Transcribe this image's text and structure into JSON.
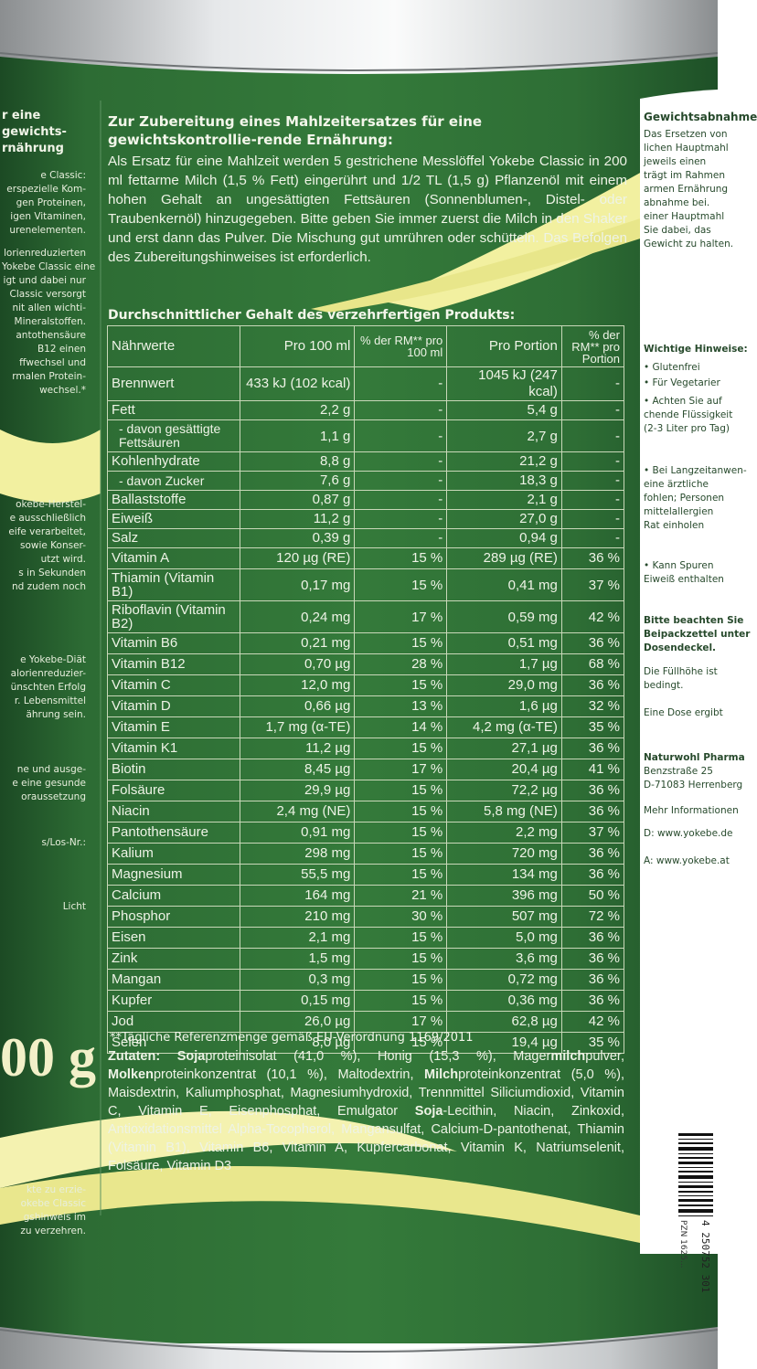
{
  "colors": {
    "can_green": "#2c6b33",
    "can_green_dark": "#1f5027",
    "swoosh_yellow": "#f2f0a0",
    "panel_white": "#ffffff",
    "text_light": "#eef3e6"
  },
  "preparation": {
    "title": "Zur Zubereitung eines Mahlzeitersatzes für eine gewichtskontrollie-rende Ernährung:",
    "text": "Als Ersatz für eine Mahlzeit werden 5 gestrichene Messlöffel Yokebe Classic in 200 ml fettarme Milch (1,5 % Fett) eingerührt und 1/2 TL (1,5 g) Pflanzenöl mit einem hohen Gehalt an ungesättigten Fettsäuren (Sonnenblumen-, Distel- oder Traubenkernöl) hinzugegeben. Bitte geben Sie immer zuerst die Milch in den Shaker und erst dann das Pulver. Die Mischung gut umrühren oder schütteln. Das Befolgen des Zubereitungshinweises ist erforderlich."
  },
  "nutrition_table": {
    "title": "Durchschnittlicher Gehalt des verzehrfertigen Produkts:",
    "headers": {
      "nutrient": "Nährwerte",
      "per100": "Pro 100 ml",
      "rm100": "% der RM** pro 100 ml",
      "portion": "Pro Portion",
      "rmportion": "% der RM** pro Portion"
    },
    "rows": [
      {
        "name": "Brennwert",
        "per100": "433 kJ (102 kcal)",
        "rm100": "-",
        "portion": "1045 kJ (247 kcal)",
        "rmp": "-"
      },
      {
        "name": "Fett",
        "per100": "2,2 g",
        "rm100": "-",
        "portion": "5,4 g",
        "rmp": "-"
      },
      {
        "name": "- davon gesättigte Fettsäuren",
        "per100": "1,1 g",
        "rm100": "-",
        "portion": "2,7 g",
        "rmp": "-"
      },
      {
        "name": "Kohlenhydrate",
        "per100": "8,8 g",
        "rm100": "-",
        "portion": "21,2 g",
        "rmp": "-"
      },
      {
        "name": "- davon Zucker",
        "per100": "7,6 g",
        "rm100": "-",
        "portion": "18,3 g",
        "rmp": "-"
      },
      {
        "name": "Ballaststoffe",
        "per100": "0,87 g",
        "rm100": "-",
        "portion": "2,1 g",
        "rmp": "-"
      },
      {
        "name": "Eiweiß",
        "per100": "11,2 g",
        "rm100": "-",
        "portion": "27,0 g",
        "rmp": "-"
      },
      {
        "name": "Salz",
        "per100": "0,39 g",
        "rm100": "-",
        "portion": "0,94 g",
        "rmp": "-"
      },
      {
        "name": "Vitamin A",
        "per100": "120 µg (RE)",
        "rm100": "15 %",
        "portion": "289 µg (RE)",
        "rmp": "36 %"
      },
      {
        "name": "Thiamin (Vitamin B1)",
        "per100": "0,17 mg",
        "rm100": "15 %",
        "portion": "0,41 mg",
        "rmp": "37 %"
      },
      {
        "name": "Riboflavin (Vitamin B2)",
        "per100": "0,24 mg",
        "rm100": "17 %",
        "portion": "0,59 mg",
        "rmp": "42 %"
      },
      {
        "name": "Vitamin B6",
        "per100": "0,21 mg",
        "rm100": "15 %",
        "portion": "0,51 mg",
        "rmp": "36 %"
      },
      {
        "name": "Vitamin B12",
        "per100": "0,70 µg",
        "rm100": "28 %",
        "portion": "1,7 µg",
        "rmp": "68 %"
      },
      {
        "name": "Vitamin C",
        "per100": "12,0 mg",
        "rm100": "15 %",
        "portion": "29,0 mg",
        "rmp": "36 %"
      },
      {
        "name": "Vitamin D",
        "per100": "0,66 µg",
        "rm100": "13 %",
        "portion": "1,6 µg",
        "rmp": "32 %"
      },
      {
        "name": "Vitamin E",
        "per100": "1,7 mg (α-TE)",
        "rm100": "14 %",
        "portion": "4,2 mg (α-TE)",
        "rmp": "35 %"
      },
      {
        "name": "Vitamin K1",
        "per100": "11,2 µg",
        "rm100": "15 %",
        "portion": "27,1 µg",
        "rmp": "36 %"
      },
      {
        "name": "Biotin",
        "per100": "8,45 µg",
        "rm100": "17 %",
        "portion": "20,4 µg",
        "rmp": "41 %"
      },
      {
        "name": "Folsäure",
        "per100": "29,9 µg",
        "rm100": "15 %",
        "portion": "72,2 µg",
        "rmp": "36 %"
      },
      {
        "name": "Niacin",
        "per100": "2,4 mg (NE)",
        "rm100": "15 %",
        "portion": "5,8 mg (NE)",
        "rmp": "36 %"
      },
      {
        "name": "Pantothensäure",
        "per100": "0,91 mg",
        "rm100": "15 %",
        "portion": "2,2 mg",
        "rmp": "37 %"
      },
      {
        "name": "Kalium",
        "per100": "298 mg",
        "rm100": "15 %",
        "portion": "720 mg",
        "rmp": "36 %"
      },
      {
        "name": "Magnesium",
        "per100": "55,5 mg",
        "rm100": "15 %",
        "portion": "134 mg",
        "rmp": "36 %"
      },
      {
        "name": "Calcium",
        "per100": "164 mg",
        "rm100": "21 %",
        "portion": "396 mg",
        "rmp": "50 %"
      },
      {
        "name": "Phosphor",
        "per100": "210 mg",
        "rm100": "30 %",
        "portion": "507 mg",
        "rmp": "72 %"
      },
      {
        "name": "Eisen",
        "per100": "2,1 mg",
        "rm100": "15 %",
        "portion": "5,0 mg",
        "rmp": "36 %"
      },
      {
        "name": "Zink",
        "per100": "1,5 mg",
        "rm100": "15 %",
        "portion": "3,6 mg",
        "rmp": "36 %"
      },
      {
        "name": "Mangan",
        "per100": "0,3 mg",
        "rm100": "15 %",
        "portion": "0,72 mg",
        "rmp": "36 %"
      },
      {
        "name": "Kupfer",
        "per100": "0,15 mg",
        "rm100": "15 %",
        "portion": "0,36 mg",
        "rmp": "36 %"
      },
      {
        "name": "Jod",
        "per100": "26,0 µg",
        "rm100": "17 %",
        "portion": "62,8 µg",
        "rmp": "42 %"
      },
      {
        "name": "Selen",
        "per100": "8,0 µg",
        "rm100": "15 %",
        "portion": "19,4 µg",
        "rmp": "35 %"
      }
    ]
  },
  "footnote": "**Tägliche Referenzmenge gemäß EU-Verordnung 1169/2011",
  "ingredients": {
    "label": "Zutaten:",
    "p1_bold": "Soja",
    "p1": "proteinisolat (41,0 %), Honig (15,3 %), Mager",
    "p2_bold": "milch",
    "p2": "pulver, ",
    "p3_bold": "Molken",
    "p3": "proteinkonzentrat (10,1 %), Maltodextrin, ",
    "p4_bold": "Milch",
    "p4": "proteinkonzentrat (5,0 %), Maisdextrin, Kaliumphosphat, Magnesiumhydroxid, Trennmittel Siliciumdioxid, Vitamin C, Vitamin E, Eisenphosphat, Emulgator ",
    "p5_bold": "Soja",
    "p5": "-Lecithin, Niacin, Zinkoxid, Antioxidationsmittel Alpha-Tocopherol, Mangansulfat, Calcium-D-pantothenat, Thiamin (Vitamin B1), Vitamin B6, Vitamin A, Kupfercarbonat, Vitamin K, Natriumselenit, Folsäure, Vitamin D3"
  },
  "left_panel": {
    "heading": "r eine gewichts-rnährung",
    "frags": [
      "e Classic:",
      "erspezielle Kom-",
      "gen Proteinen,",
      "igen Vitaminen,",
      "urenelementen.",
      "lorienreduzierten",
      "Yokebe Classic eine",
      "igt und dabei nur",
      "Classic versorgt",
      "nit allen wichti-",
      "Mineralstoffen.",
      "antothensäure",
      "B12 einen",
      "ffwechsel und",
      "rmalen Protein-",
      "wechsel.*",
      "okebe-Herstel-",
      "e ausschließlich",
      "eife verarbeitet,",
      "sowie Konser-",
      "utzt wird.",
      "s in Sekunden",
      "nd zudem noch",
      "e Yokebe-Diät",
      "alorienreduzier-",
      "ünschten Erfolg",
      "r. Lebensmittel",
      "ährung sein.",
      "ne und ausge-",
      "e eine gesunde",
      "oraussetzung",
      "s/Los-Nr.:",
      "Licht",
      "kte zu erzie-",
      "okebe Classic",
      "gshinweis im",
      "zu verzehren."
    ],
    "weight": "00 g"
  },
  "right_panel": {
    "heading": "Gewichtsabnahme",
    "frags": [
      "Das Ersetzen von",
      "lichen Hauptmahl",
      "jeweils einen",
      "trägt im Rahmen",
      "armen Ernährung",
      "abnahme bei.",
      "einer Hauptmahl",
      "Sie dabei, das",
      "Gewicht zu halten.",
      "Wichtige Hinweise:",
      "• Glutenfrei",
      "• Für Vegetarier",
      "• Achten Sie auf",
      "chende Flüssigkeit",
      "(2-3 Liter pro Tag)",
      "• Bei Langzeitanwen-",
      "eine ärztliche",
      "fohlen; Personen",
      "mittelallergien",
      "Rat einholen",
      "• Kann Spuren",
      "Eiweiß enthalten",
      "Bitte beachten Sie",
      "Beipackzettel unter",
      "Dosendeckel.",
      "Die Füllhöhe ist",
      "bedingt.",
      "Eine Dose ergibt",
      "Naturwohl Pharma",
      "Benzstraße 25",
      "D-71083 Herrenberg",
      "Mehr Informationen",
      "D: www.yokebe.de",
      "A: www.yokebe.at"
    ],
    "barcode": "4 250752 301",
    "pzn": "PZN 1625..."
  }
}
